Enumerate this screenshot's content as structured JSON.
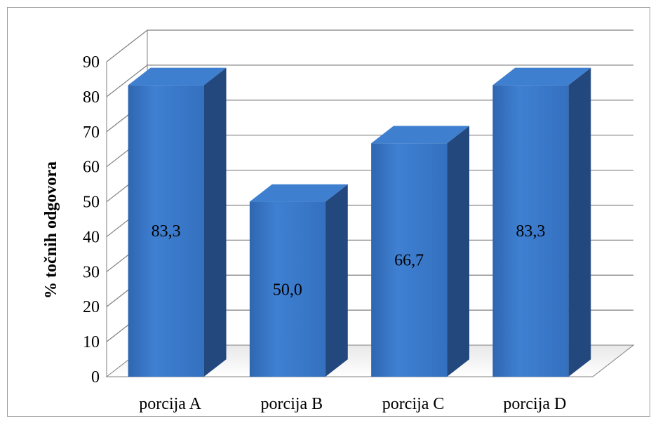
{
  "chart_data": {
    "type": "bar",
    "style": "3d-column",
    "categories": [
      "porcija A",
      "porcija B",
      "porcija C",
      "porcija D"
    ],
    "values": [
      83.3,
      50.0,
      66.7,
      83.3
    ],
    "data_labels": [
      "83,3",
      "50,0",
      "66,7",
      "83,3"
    ],
    "ylabel": "% točnih odgovora",
    "xlabel": "",
    "ylim": [
      0,
      90
    ],
    "y_ticks": [
      "0",
      "10",
      "20",
      "30",
      "40",
      "50",
      "60",
      "70",
      "80",
      "90"
    ],
    "grid": true,
    "colors": {
      "bar_front": "#3a78c8",
      "bar_front_dark": "#2f66b0",
      "bar_side": "#23487e",
      "bar_top": "#3f7fd0",
      "gridline": "#7f7f7f",
      "frame": "#9a9a9a"
    }
  }
}
